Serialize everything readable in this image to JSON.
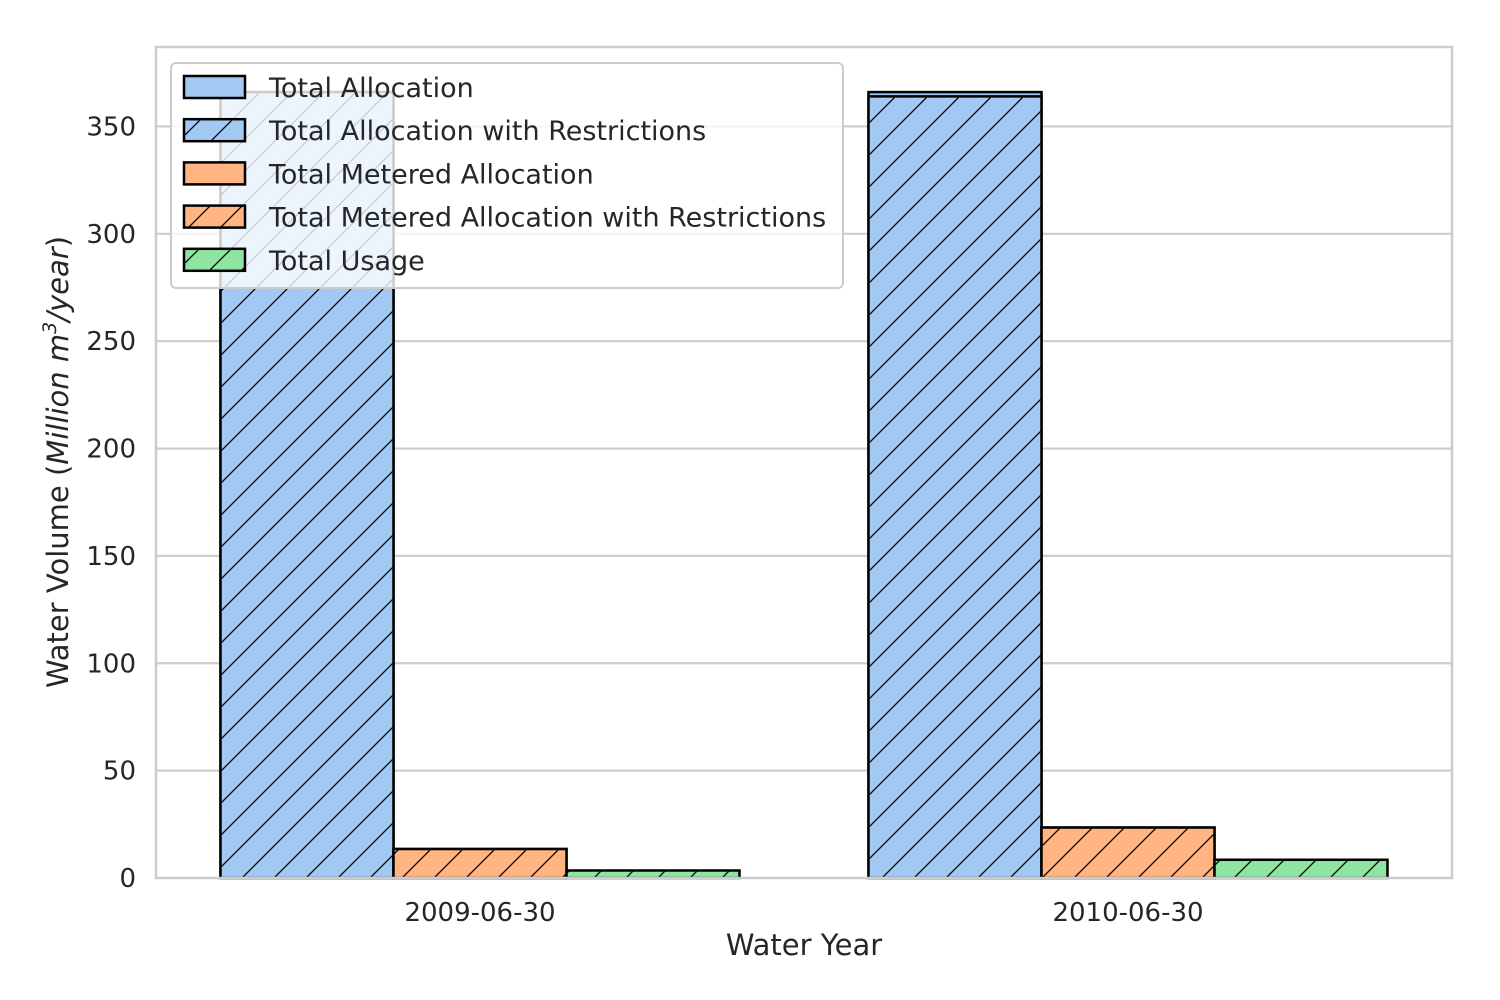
{
  "chart_data": {
    "type": "bar",
    "title": "",
    "xlabel": "Water Year",
    "ylabel": {
      "prefix": "Water Volume (",
      "unit_main": "Million m",
      "unit_sup": "3",
      "unit_tail": "/year",
      "suffix": ")"
    },
    "ylim": [
      0,
      387
    ],
    "yticks": [
      0,
      50,
      100,
      150,
      200,
      250,
      300,
      350
    ],
    "grid": true,
    "legend_position": "top-left",
    "categories": [
      "2009-06-30",
      "2010-06-30"
    ],
    "series": [
      {
        "name": "Total Allocation",
        "values": [
          366,
          366
        ],
        "color": "#a1c9f4",
        "hatch": false
      },
      {
        "name": "Total Allocation with Restrictions",
        "values": [
          366,
          364
        ],
        "color": "#a1c9f4",
        "hatch": true
      },
      {
        "name": "Total Metered Allocation",
        "values": [
          13.5,
          23.5
        ],
        "color": "#ffb482",
        "hatch": false
      },
      {
        "name": "Total Metered Allocation with Restrictions",
        "values": [
          13.5,
          23.5
        ],
        "color": "#ffb482",
        "hatch": true
      },
      {
        "name": "Total Usage",
        "values": [
          3.5,
          8.5
        ],
        "color": "#8de5a1",
        "hatch": true
      }
    ]
  }
}
